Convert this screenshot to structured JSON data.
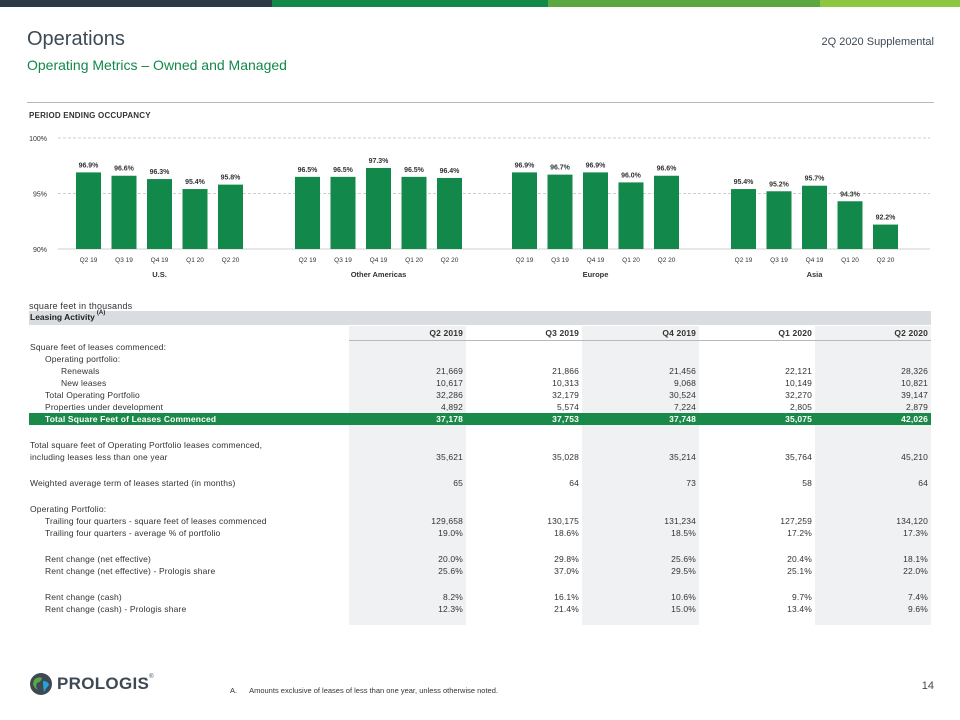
{
  "header": {
    "title": "Operations",
    "subtitle": "Operating Metrics – Owned and Managed",
    "supplemental": "2Q 2020 Supplemental",
    "top_bar_colors": [
      "#2b3a45",
      "#12884a",
      "#5ba843",
      "#8dc63f"
    ]
  },
  "chart_section": {
    "title": "PERIOD ENDING OCCUPANCY"
  },
  "chart_data": {
    "type": "bar",
    "title": "PERIOD ENDING OCCUPANCY",
    "ylim": [
      90,
      100
    ],
    "yticks": [
      "90%",
      "95%",
      "100%"
    ],
    "yticks_values": [
      90,
      95,
      100
    ],
    "grid": true,
    "bar_color": "#12884a",
    "groups": [
      {
        "name": "U.S.",
        "categories": [
          "Q2 19",
          "Q3 19",
          "Q4 19",
          "Q1 20",
          "Q2 20"
        ],
        "values": [
          96.9,
          96.6,
          96.3,
          95.4,
          95.8
        ],
        "labels": [
          "96.9%",
          "96.6%",
          "96.3%",
          "95.4%",
          "95.8%"
        ]
      },
      {
        "name": "Other Americas",
        "categories": [
          "Q2 19",
          "Q3 19",
          "Q4 19",
          "Q1 20",
          "Q2 20"
        ],
        "values": [
          96.5,
          96.5,
          97.3,
          96.5,
          96.4
        ],
        "labels": [
          "96.5%",
          "96.5%",
          "97.3%",
          "96.5%",
          "96.4%"
        ]
      },
      {
        "name": "Europe",
        "categories": [
          "Q2 19",
          "Q3 19",
          "Q4 19",
          "Q1 20",
          "Q2 20"
        ],
        "values": [
          96.9,
          96.7,
          96.9,
          96.0,
          96.6
        ],
        "labels": [
          "96.9%",
          "96.7%",
          "96.9%",
          "96.0%",
          "96.6%"
        ]
      },
      {
        "name": "Asia",
        "categories": [
          "Q2 19",
          "Q3 19",
          "Q4 19",
          "Q1 20",
          "Q2 20"
        ],
        "values": [
          95.4,
          95.2,
          95.7,
          94.3,
          92.2
        ],
        "labels": [
          "95.4%",
          "95.2%",
          "95.7%",
          "94.3%",
          "92.2%"
        ]
      }
    ]
  },
  "table": {
    "units_note": "square feet in thousands",
    "section_title": "Leasing Activity",
    "section_marker": "(A)",
    "columns": [
      "Q2 2019",
      "Q3 2019",
      "Q4 2019",
      "Q1 2020",
      "Q2 2020"
    ],
    "rows": {
      "commenced_header": "Square feet of leases commenced:",
      "op_portfolio_header": "Operating portfolio:",
      "renewals": {
        "label": "Renewals",
        "values": [
          "21,669",
          "21,866",
          "21,456",
          "22,121",
          "28,326"
        ]
      },
      "new_leases": {
        "label": "New leases",
        "values": [
          "10,617",
          "10,313",
          "9,068",
          "10,149",
          "10,821"
        ]
      },
      "total_op": {
        "label": "Total Operating Portfolio",
        "values": [
          "32,286",
          "32,179",
          "30,524",
          "32,270",
          "39,147"
        ]
      },
      "under_dev": {
        "label": "Properties under development",
        "values": [
          "4,892",
          "5,574",
          "7,224",
          "2,805",
          "2,879"
        ]
      },
      "total_commenced": {
        "label": "Total Square Feet of Leases Commenced",
        "values": [
          "37,178",
          "37,753",
          "37,748",
          "35,075",
          "42,026"
        ]
      },
      "total_sqft_line1": "Total square feet of Operating Portfolio leases commenced,",
      "total_sqft": {
        "label": "including leases less than one year",
        "values": [
          "35,621",
          "35,028",
          "35,214",
          "35,764",
          "45,210"
        ]
      },
      "weighted_term": {
        "label": "Weighted average term of leases started (in months)",
        "values": [
          "65",
          "64",
          "73",
          "58",
          "64"
        ]
      },
      "op_portfolio2_header": "Operating Portfolio:",
      "trailing_sqft": {
        "label": "Trailing four quarters - square feet of leases commenced",
        "values": [
          "129,658",
          "130,175",
          "131,234",
          "127,259",
          "134,120"
        ]
      },
      "trailing_pct": {
        "label": "Trailing four quarters - average % of portfolio",
        "values": [
          "19.0%",
          "18.6%",
          "18.5%",
          "17.2%",
          "17.3%"
        ]
      },
      "rent_net": {
        "label": "Rent change (net effective)",
        "values": [
          "20.0%",
          "29.8%",
          "25.6%",
          "20.4%",
          "18.1%"
        ]
      },
      "rent_net_share": {
        "label": "Rent change (net effective) - Prologis share",
        "values": [
          "25.6%",
          "37.0%",
          "29.5%",
          "25.1%",
          "22.0%"
        ]
      },
      "rent_cash": {
        "label": "Rent change (cash)",
        "values": [
          "8.2%",
          "16.1%",
          "10.6%",
          "9.7%",
          "7.4%"
        ]
      },
      "rent_cash_share": {
        "label": "Rent change (cash) - Prologis share",
        "values": [
          "12.3%",
          "21.4%",
          "15.0%",
          "13.4%",
          "9.6%"
        ]
      }
    }
  },
  "footer": {
    "logo_text": "PROLOGIS",
    "logo_mark": "®",
    "footnote_marker": "A.",
    "footnote": "Amounts exclusive of leases of less than one year, unless otherwise noted.",
    "page_number": "14"
  }
}
